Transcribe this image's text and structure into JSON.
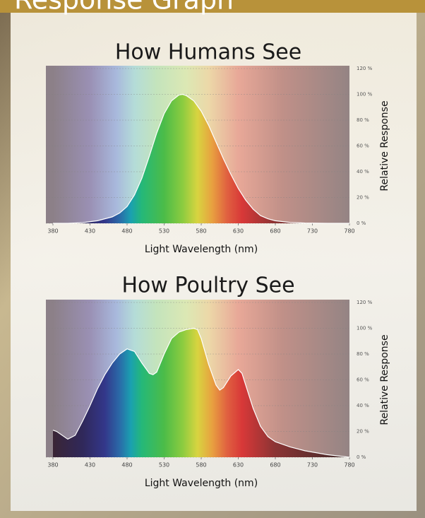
{
  "header": {
    "title": "Response Graph"
  },
  "chart_data": [
    {
      "type": "area",
      "title": "How Humans See",
      "xlabel": "Light Wavelength (nm)",
      "ylabel": "Relative Response",
      "color": "#ffffff",
      "x": [
        380,
        400,
        420,
        440,
        460,
        470,
        480,
        490,
        500,
        510,
        520,
        530,
        540,
        550,
        555,
        560,
        570,
        580,
        590,
        600,
        610,
        620,
        630,
        640,
        650,
        660,
        670,
        680,
        700,
        720,
        750,
        780
      ],
      "values": [
        0,
        0,
        0.5,
        2,
        5,
        8,
        13,
        22,
        35,
        52,
        70,
        85,
        95,
        99.5,
        100,
        99,
        95,
        87,
        76,
        63,
        50,
        38,
        27,
        18,
        11,
        6,
        3.5,
        2,
        0.7,
        0.2,
        0,
        0
      ],
      "xlim": [
        380,
        780
      ],
      "xticks": [
        380,
        430,
        480,
        530,
        580,
        630,
        680,
        730,
        780
      ],
      "ylim": [
        0,
        120
      ],
      "yticks": [
        {
          "value": 0,
          "label": "0 %"
        },
        {
          "value": 20,
          "label": "20 %"
        },
        {
          "value": 40,
          "label": "40 %"
        },
        {
          "value": 60,
          "label": "60 %"
        },
        {
          "value": 80,
          "label": "80 %"
        },
        {
          "value": 100,
          "label": "100 %"
        },
        {
          "value": 120,
          "label": "120 %"
        }
      ]
    },
    {
      "type": "area",
      "title": "How Poultry See",
      "xlabel": "Light Wavelength (nm)",
      "ylabel": "Relative Response",
      "color": "#ffffff",
      "x": [
        380,
        385,
        400,
        410,
        420,
        430,
        440,
        450,
        460,
        470,
        480,
        490,
        500,
        510,
        515,
        520,
        530,
        540,
        550,
        560,
        570,
        575,
        580,
        590,
        600,
        605,
        610,
        620,
        630,
        635,
        640,
        650,
        660,
        670,
        680,
        700,
        720,
        750,
        780
      ],
      "values": [
        21,
        20,
        14,
        17,
        28,
        40,
        53,
        64,
        73,
        80,
        84,
        82,
        73,
        65,
        64,
        66,
        80,
        92,
        97,
        99,
        100,
        99,
        92,
        72,
        56,
        52,
        54,
        63,
        68,
        65,
        56,
        38,
        24,
        16,
        12,
        8,
        5,
        2,
        0
      ],
      "xlim": [
        380,
        780
      ],
      "xticks": [
        380,
        430,
        480,
        530,
        580,
        630,
        680,
        730,
        780
      ],
      "ylim": [
        0,
        120
      ],
      "yticks": [
        {
          "value": 0,
          "label": "0 %"
        },
        {
          "value": 20,
          "label": "20 %"
        },
        {
          "value": 40,
          "label": "40 %"
        },
        {
          "value": 60,
          "label": "60 %"
        },
        {
          "value": 80,
          "label": "80 %"
        },
        {
          "value": 100,
          "label": "100 %"
        },
        {
          "value": 120,
          "label": "120 %"
        }
      ]
    }
  ]
}
